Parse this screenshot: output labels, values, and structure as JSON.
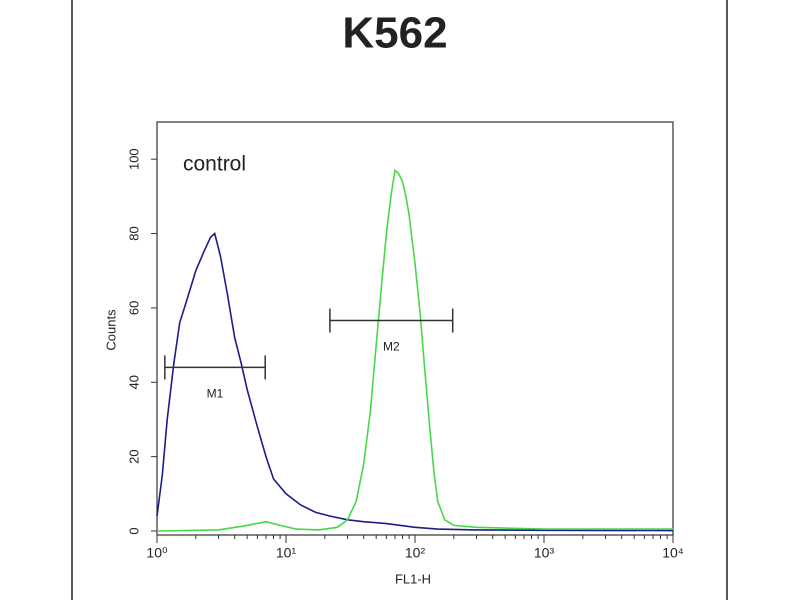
{
  "chart_data": {
    "type": "histogram-line",
    "title": "K562",
    "xlabel": "FL1-H",
    "ylabel": "Counts",
    "annotation": "control",
    "log_x": true,
    "xlim": [
      1,
      10000
    ],
    "xticks": [
      {
        "value": 1,
        "label": "10⁰"
      },
      {
        "value": 10,
        "label": "10¹"
      },
      {
        "value": 100,
        "label": "10²"
      },
      {
        "value": 1000,
        "label": "10³"
      },
      {
        "value": 10000,
        "label": "10⁴"
      }
    ],
    "ylim": [
      0,
      110
    ],
    "yticks": [
      0,
      20,
      40,
      60,
      80,
      100
    ],
    "series": [
      {
        "name": "control",
        "color": "#1c1c8c",
        "x": [
          1,
          1.1,
          1.2,
          1.35,
          1.5,
          1.7,
          2,
          2.3,
          2.6,
          2.8,
          3.1,
          3.5,
          4,
          4.5,
          5,
          6,
          7,
          8,
          10,
          13,
          17,
          22,
          30,
          40,
          60,
          100,
          150,
          300,
          1000,
          10000
        ],
        "values": [
          4,
          15,
          30,
          45,
          56,
          62,
          70,
          75,
          79,
          80,
          74,
          64,
          52,
          45,
          38,
          28,
          20,
          14,
          10,
          7,
          5,
          4,
          3,
          2.5,
          2,
          1,
          0.5,
          0.3,
          0.2,
          0.1
        ]
      },
      {
        "color": "#47d847",
        "x": [
          1,
          3,
          5,
          7,
          9,
          12,
          18,
          25,
          30,
          35,
          40,
          45,
          50,
          55,
          60,
          65,
          70,
          75,
          80,
          85,
          90,
          100,
          110,
          120,
          130,
          140,
          150,
          170,
          200,
          300,
          1000,
          3000,
          10000
        ],
        "values": [
          0,
          0.3,
          1.5,
          2.5,
          1.5,
          0.5,
          0.3,
          1,
          3,
          8,
          18,
          32,
          50,
          66,
          80,
          90,
          97,
          96,
          94,
          90,
          85,
          72,
          58,
          42,
          28,
          16,
          8,
          3,
          1.5,
          1,
          0.5,
          0.5,
          0.5
        ]
      }
    ],
    "gates": [
      {
        "label": "M1",
        "range": [
          1.15,
          6.9
        ],
        "y": 44
      },
      {
        "label": "M2",
        "range": [
          21.9,
          196
        ],
        "y": 56.6
      }
    ]
  }
}
